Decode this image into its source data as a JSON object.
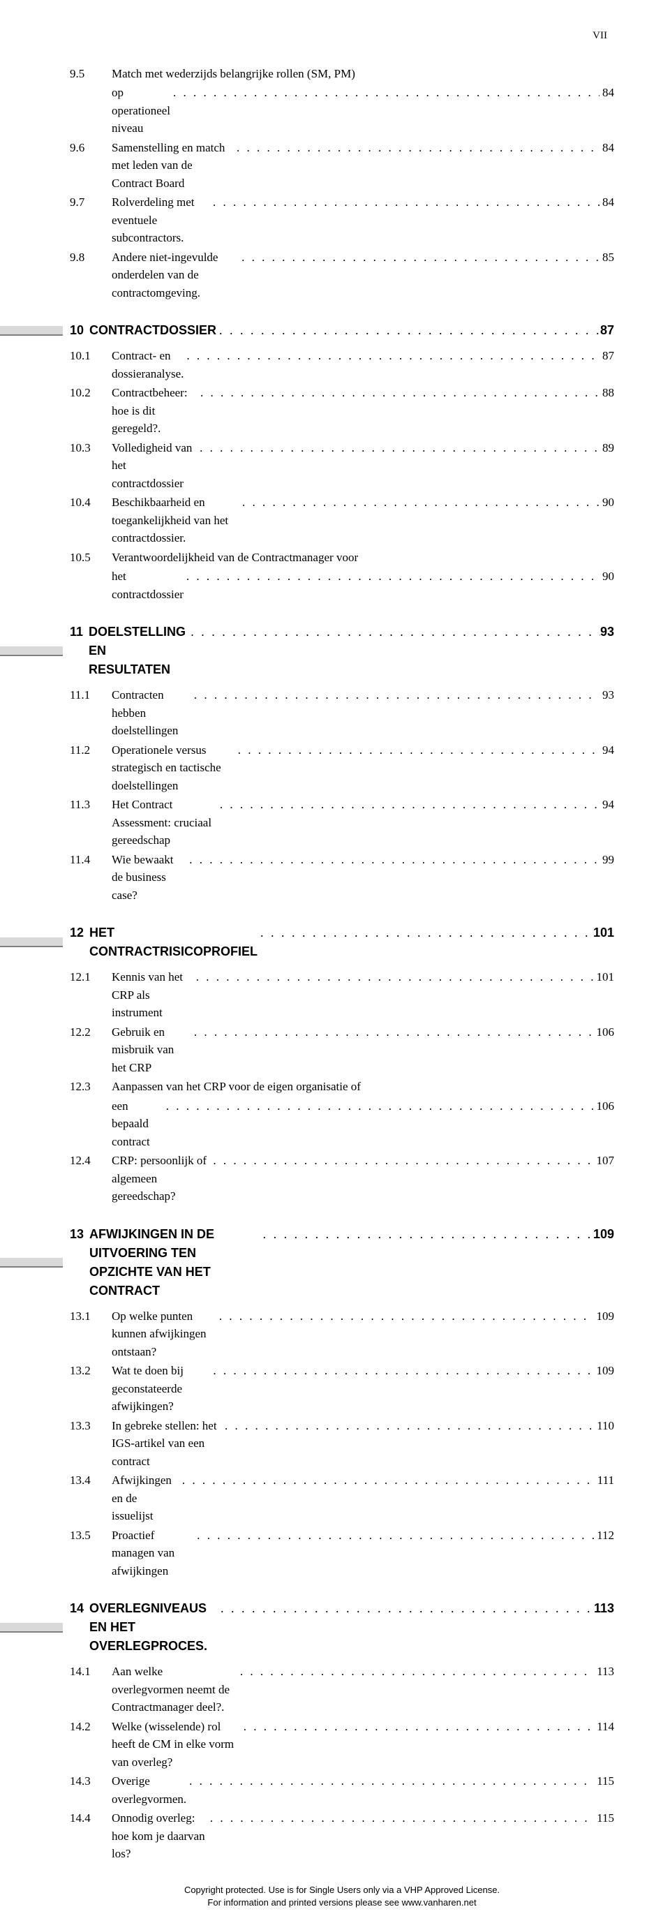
{
  "page_marker": "VII",
  "orphan_entries": [
    {
      "num": "9.5",
      "text_line1": "Match met wederzijds belangrijke rollen (SM, PM)",
      "text_line2": "op operationeel niveau",
      "page": "84"
    },
    {
      "num": "9.6",
      "text": "Samenstelling en match met leden van de Contract Board",
      "page": "84"
    },
    {
      "num": "9.7",
      "text": "Rolverdeling met eventuele subcontractors.",
      "page": "84"
    },
    {
      "num": "9.8",
      "text": "Andere niet-ingevulde onderdelen van de contractomgeving.",
      "page": "85"
    }
  ],
  "chapters": [
    {
      "num": "10",
      "title": "CONTRACTDOSSIER",
      "page": "87",
      "entries": [
        {
          "num": "10.1",
          "text": "Contract- en dossieranalyse.",
          "page": "87"
        },
        {
          "num": "10.2",
          "text": "Contractbeheer: hoe is dit geregeld?.",
          "page": "88"
        },
        {
          "num": "10.3",
          "text": "Volledigheid van het contractdossier",
          "page": "89"
        },
        {
          "num": "10.4",
          "text": "Beschikbaarheid en toegankelijkheid van het contractdossier.",
          "page": "90"
        },
        {
          "num": "10.5",
          "text_line1": "Verantwoordelijkheid van de Contractmanager voor",
          "text_line2": "het contractdossier",
          "page": "90"
        }
      ]
    },
    {
      "num": "11",
      "title": "DOELSTELLING EN RESULTATEN",
      "page": "93",
      "entries": [
        {
          "num": "11.1",
          "text": "Contracten hebben doelstellingen",
          "page": "93"
        },
        {
          "num": "11.2",
          "text": "Operationele versus strategisch en tactische doelstellingen",
          "page": "94"
        },
        {
          "num": "11.3",
          "text": "Het Contract Assessment: cruciaal gereedschap",
          "page": "94"
        },
        {
          "num": "11.4",
          "text": "Wie bewaakt de business case?",
          "page": "99"
        }
      ]
    },
    {
      "num": "12",
      "title": "HET CONTRACTRISICOPROFIEL",
      "page": "101",
      "entries": [
        {
          "num": "12.1",
          "text": "Kennis van het CRP als instrument",
          "page": "101"
        },
        {
          "num": "12.2",
          "text": "Gebruik en misbruik van het CRP",
          "page": "106"
        },
        {
          "num": "12.3",
          "text_line1": "Aanpassen van het CRP voor de eigen organisatie of",
          "text_line2": "een bepaald contract",
          "page": "106"
        },
        {
          "num": "12.4",
          "text": "CRP: persoonlijk of algemeen gereedschap?",
          "page": "107"
        }
      ]
    },
    {
      "num": "13",
      "title": "AFWIJKINGEN IN DE UITVOERING TEN OPZICHTE VAN HET CONTRACT",
      "page": "109",
      "entries": [
        {
          "num": "13.1",
          "text": "Op welke punten kunnen afwijkingen ontstaan?",
          "page": "109"
        },
        {
          "num": "13.2",
          "text": "Wat te doen bij geconstateerde afwijkingen?",
          "page": "109"
        },
        {
          "num": "13.3",
          "text": "In gebreke stellen: het IGS-artikel van een contract",
          "page": "110"
        },
        {
          "num": "13.4",
          "text": "Afwijkingen en de issuelijst",
          "page": "111"
        },
        {
          "num": "13.5",
          "text": "Proactief managen van afwijkingen",
          "page": "112"
        }
      ]
    },
    {
      "num": "14",
      "title": "OVERLEGNIVEAUS EN HET OVERLEGPROCES.",
      "page": "113",
      "entries": [
        {
          "num": "14.1",
          "text": "Aan welke overlegvormen neemt de Contractmanager deel?.",
          "page": "113"
        },
        {
          "num": "14.2",
          "text": "Welke (wisselende) rol heeft de CM in elke vorm van overleg?",
          "page": "114"
        },
        {
          "num": "14.3",
          "text": "Overige overlegvormen.",
          "page": "115"
        },
        {
          "num": "14.4",
          "text": "Onnodig overleg: hoe kom je daarvan los?",
          "page": "115"
        }
      ]
    }
  ],
  "footer": {
    "line1": "Copyright protected. Use is for Single Users only via a VHP Approved License.",
    "line2": "For information and printed versions please see www.vanharen.net"
  },
  "dots": ". . . . . . . . . . . . . . . . . . . . . . . . . . . . . . . . . . . . . . . . . . . . . . . . . . . . . . . . . . . . . . . . . . . . . . . . . . . . . . . ."
}
